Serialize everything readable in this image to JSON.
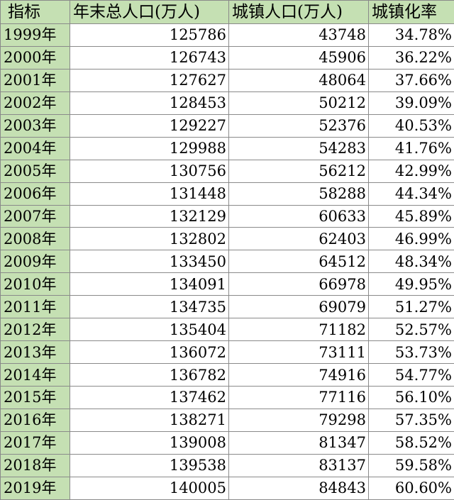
{
  "table": {
    "headers": [
      "指标",
      "年末总人口(万人)",
      "城镇人口(万人)",
      "城镇化率"
    ],
    "rows": [
      [
        "1999年",
        "125786",
        "43748",
        "34.78%"
      ],
      [
        "2000年",
        "126743",
        "45906",
        "36.22%"
      ],
      [
        "2001年",
        "127627",
        "48064",
        "37.66%"
      ],
      [
        "2002年",
        "128453",
        "50212",
        "39.09%"
      ],
      [
        "2003年",
        "129227",
        "52376",
        "40.53%"
      ],
      [
        "2004年",
        "129988",
        "54283",
        "41.76%"
      ],
      [
        "2005年",
        "130756",
        "56212",
        "42.99%"
      ],
      [
        "2006年",
        "131448",
        "58288",
        "44.34%"
      ],
      [
        "2007年",
        "132129",
        "60633",
        "45.89%"
      ],
      [
        "2008年",
        "132802",
        "62403",
        "46.99%"
      ],
      [
        "2009年",
        "133450",
        "64512",
        "48.34%"
      ],
      [
        "2010年",
        "134091",
        "66978",
        "49.95%"
      ],
      [
        "2011年",
        "134735",
        "69079",
        "51.27%"
      ],
      [
        "2012年",
        "135404",
        "71182",
        "52.57%"
      ],
      [
        "2013年",
        "136072",
        "73111",
        "53.73%"
      ],
      [
        "2014年",
        "136782",
        "74916",
        "54.77%"
      ],
      [
        "2015年",
        "137462",
        "77116",
        "56.10%"
      ],
      [
        "2016年",
        "138271",
        "79298",
        "57.35%"
      ],
      [
        "2017年",
        "139008",
        "81347",
        "58.52%"
      ],
      [
        "2018年",
        "139538",
        "83137",
        "59.58%"
      ],
      [
        "2019年",
        "140005",
        "84843",
        "60.60%"
      ]
    ]
  }
}
